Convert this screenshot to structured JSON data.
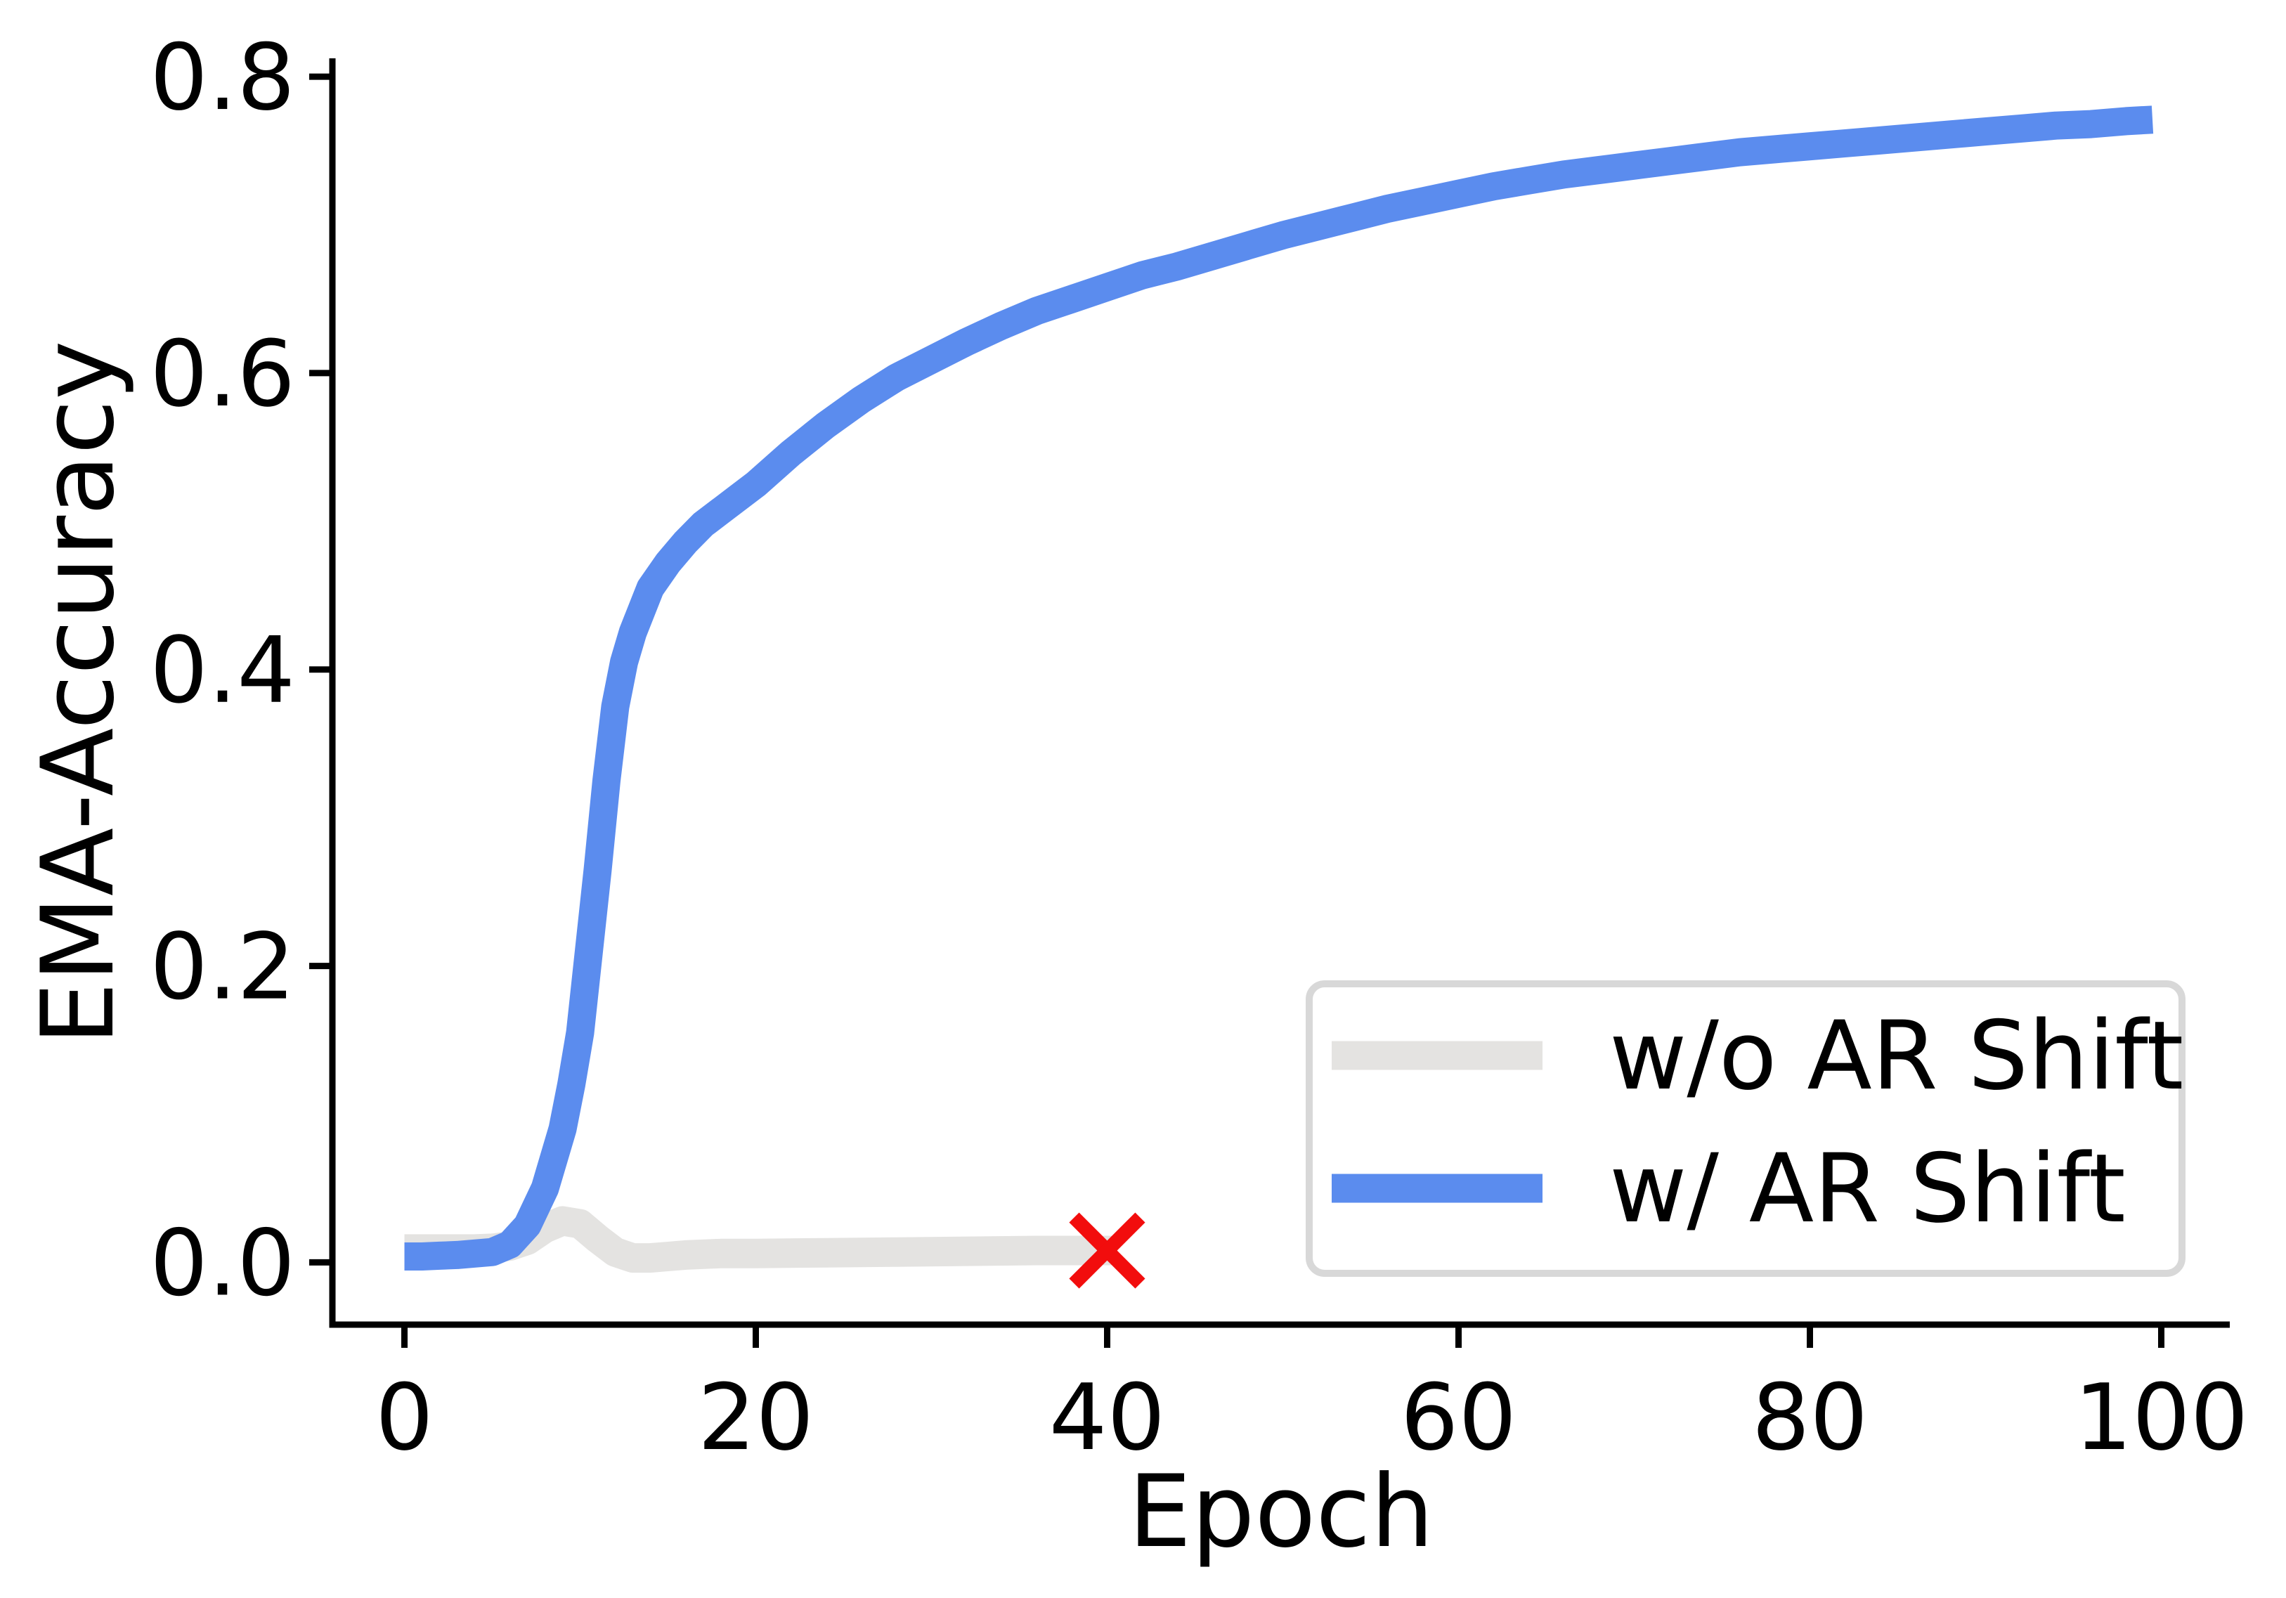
{
  "figure": {
    "background": "#ffffff",
    "axis_color": "#000000",
    "accent_blue": "#5b8cee",
    "light_gray": "#e4e3e1",
    "marker_red": "#f20d0d",
    "legend_border": "#d8d8d8"
  },
  "chart_data": {
    "type": "line",
    "title": "",
    "xlabel": "Epoch",
    "ylabel": "EMA-Accuracy",
    "xlim": [
      -4.1,
      103.9
    ],
    "ylim": [
      -0.042,
      0.81
    ],
    "x_ticks": [
      0,
      20,
      40,
      60,
      80,
      100
    ],
    "x_tick_labels": [
      "0",
      "20",
      "40",
      "60",
      "80",
      "100"
    ],
    "y_ticks": [
      0.0,
      0.2,
      0.4,
      0.6,
      0.8
    ],
    "y_tick_labels": [
      "0.0",
      "0.2",
      "0.4",
      "0.6",
      "0.8"
    ],
    "grid": false,
    "legend_position": "lower right",
    "series": [
      {
        "name": "w/o AR Shift",
        "color": "#e4e3e1",
        "linewidth": 42,
        "points": [
          [
            0,
            0.009
          ],
          [
            2,
            0.009
          ],
          [
            4,
            0.009
          ],
          [
            5,
            0.0095
          ],
          [
            6,
            0.011
          ],
          [
            7,
            0.015
          ],
          [
            8,
            0.023
          ],
          [
            9,
            0.028
          ],
          [
            10,
            0.026
          ],
          [
            11,
            0.016
          ],
          [
            12,
            0.007
          ],
          [
            13,
            0.003
          ],
          [
            14,
            0.003
          ],
          [
            15,
            0.004
          ],
          [
            16,
            0.005
          ],
          [
            18,
            0.006
          ],
          [
            20,
            0.006
          ],
          [
            24,
            0.0065
          ],
          [
            28,
            0.007
          ],
          [
            32,
            0.0075
          ],
          [
            36,
            0.008
          ],
          [
            40.5,
            0.008
          ]
        ]
      },
      {
        "name": "w/ AR Shift",
        "color": "#5b8cee",
        "linewidth": 40,
        "points": [
          [
            0,
            0.004
          ],
          [
            1,
            0.004
          ],
          [
            2,
            0.0045
          ],
          [
            3,
            0.005
          ],
          [
            4,
            0.006
          ],
          [
            5,
            0.007
          ],
          [
            6,
            0.012
          ],
          [
            7,
            0.025
          ],
          [
            8,
            0.05
          ],
          [
            9,
            0.09
          ],
          [
            9.5,
            0.12
          ],
          [
            10,
            0.155
          ],
          [
            10.5,
            0.21
          ],
          [
            11,
            0.265
          ],
          [
            11.5,
            0.325
          ],
          [
            12,
            0.375
          ],
          [
            12.5,
            0.405
          ],
          [
            13,
            0.425
          ],
          [
            14,
            0.455
          ],
          [
            15,
            0.472
          ],
          [
            16,
            0.486
          ],
          [
            17,
            0.498
          ],
          [
            18,
            0.507
          ],
          [
            19,
            0.516
          ],
          [
            20,
            0.525
          ],
          [
            22,
            0.546
          ],
          [
            24,
            0.565
          ],
          [
            26,
            0.582
          ],
          [
            28,
            0.597
          ],
          [
            30,
            0.609
          ],
          [
            32,
            0.621
          ],
          [
            34,
            0.632
          ],
          [
            36,
            0.642
          ],
          [
            38,
            0.65
          ],
          [
            40,
            0.658
          ],
          [
            42,
            0.666
          ],
          [
            44,
            0.672
          ],
          [
            46,
            0.679
          ],
          [
            48,
            0.686
          ],
          [
            50,
            0.693
          ],
          [
            52,
            0.699
          ],
          [
            54,
            0.705
          ],
          [
            56,
            0.711
          ],
          [
            58,
            0.716
          ],
          [
            60,
            0.721
          ],
          [
            62,
            0.726
          ],
          [
            64,
            0.73
          ],
          [
            66,
            0.734
          ],
          [
            68,
            0.737
          ],
          [
            70,
            0.74
          ],
          [
            72,
            0.743
          ],
          [
            74,
            0.746
          ],
          [
            76,
            0.749
          ],
          [
            78,
            0.751
          ],
          [
            80,
            0.753
          ],
          [
            82,
            0.755
          ],
          [
            84,
            0.757
          ],
          [
            86,
            0.759
          ],
          [
            88,
            0.761
          ],
          [
            90,
            0.763
          ],
          [
            92,
            0.765
          ],
          [
            94,
            0.767
          ],
          [
            96,
            0.768
          ],
          [
            98,
            0.77
          ],
          [
            99.5,
            0.771
          ]
        ]
      }
    ],
    "annotations": [
      {
        "type": "marker",
        "symbol": "x",
        "x": 40,
        "y": 0.008,
        "color": "#f20d0d",
        "size": 94,
        "stroke": 20
      }
    ]
  },
  "legend": {
    "items": [
      {
        "label": "w/o AR Shift",
        "color": "#e4e3e1"
      },
      {
        "label": "w/ AR Shift",
        "color": "#5b8cee"
      }
    ]
  }
}
